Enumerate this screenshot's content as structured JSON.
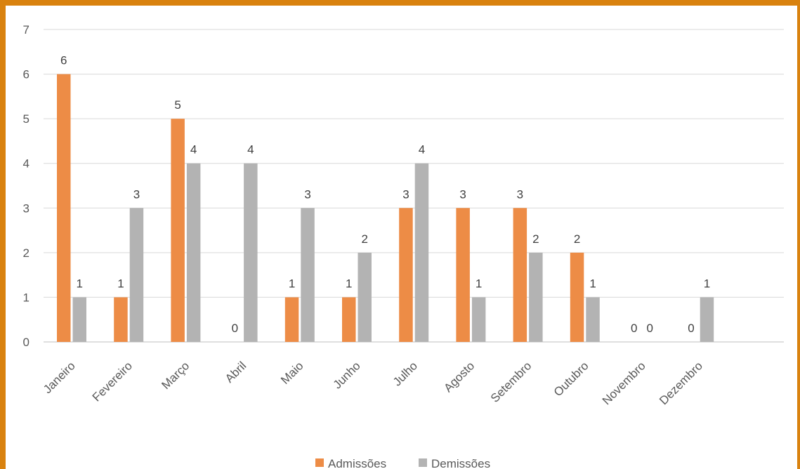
{
  "chart_data": {
    "type": "bar",
    "categories": [
      "Janeiro",
      "Fevereiro",
      "Março",
      "Abril",
      "Maio",
      "Junho",
      "Julho",
      "Agosto",
      "Setembro",
      "Outubro",
      "Novembro",
      "Dezembro"
    ],
    "series": [
      {
        "name": "Admissões",
        "values": [
          6,
          1,
          5,
          0,
          1,
          1,
          3,
          3,
          3,
          2,
          0,
          0
        ],
        "color": "#ed8c46"
      },
      {
        "name": "Demissões",
        "values": [
          1,
          3,
          4,
          4,
          3,
          2,
          4,
          1,
          2,
          1,
          0,
          1
        ],
        "color": "#b3b3b3"
      }
    ],
    "ylim": [
      0,
      7
    ],
    "yticks": [
      0,
      1,
      2,
      3,
      4,
      5,
      6,
      7
    ],
    "grid": true,
    "legend_position": "bottom",
    "data_labels": true,
    "frame_color": "#d9820f"
  }
}
